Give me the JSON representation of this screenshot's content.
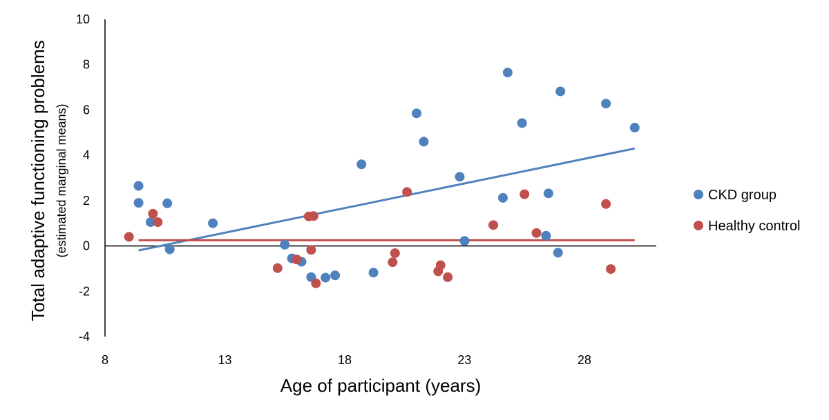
{
  "chart_data": {
    "type": "scatter",
    "xlabel": "Age of participant (years)",
    "ylabel": "Total adaptive functioning problems",
    "ylabel_sub": "(estimated marginal means)",
    "xlim": [
      8,
      31
    ],
    "ylim": [
      -4,
      10
    ],
    "x_ticks": [
      "8",
      "13",
      "18",
      "23",
      "28"
    ],
    "y_ticks": [
      "10",
      "8",
      "6",
      "4",
      "2",
      "0",
      "-2",
      "-4"
    ],
    "grid": false,
    "legend_position": "right",
    "series": [
      {
        "name": "CKD group",
        "color": "#4f81bd",
        "points": [
          [
            9.4,
            2.65
          ],
          [
            9.4,
            1.9
          ],
          [
            9.9,
            1.05
          ],
          [
            10.6,
            1.88
          ],
          [
            10.7,
            -0.15
          ],
          [
            12.5,
            1.0
          ],
          [
            15.5,
            0.05
          ],
          [
            15.8,
            -0.55
          ],
          [
            16.2,
            -0.7
          ],
          [
            16.6,
            -1.38
          ],
          [
            17.2,
            -1.4
          ],
          [
            17.6,
            -1.3
          ],
          [
            18.7,
            3.6
          ],
          [
            19.2,
            -1.18
          ],
          [
            21.0,
            5.85
          ],
          [
            21.3,
            4.6
          ],
          [
            22.8,
            3.05
          ],
          [
            23.0,
            0.22
          ],
          [
            24.6,
            2.12
          ],
          [
            24.8,
            7.65
          ],
          [
            25.4,
            5.42
          ],
          [
            26.4,
            0.45
          ],
          [
            26.5,
            2.32
          ],
          [
            26.9,
            -0.3
          ],
          [
            27.0,
            6.82
          ],
          [
            28.9,
            6.28
          ],
          [
            30.1,
            5.22
          ]
        ],
        "trend": {
          "x": [
            9.4,
            30.1
          ],
          "y": [
            -0.2,
            4.3
          ]
        }
      },
      {
        "name": "Healthy control",
        "color": "#c0504d",
        "points": [
          [
            9.0,
            0.4
          ],
          [
            10.0,
            1.42
          ],
          [
            10.2,
            1.05
          ],
          [
            15.2,
            -0.98
          ],
          [
            16.0,
            -0.6
          ],
          [
            16.5,
            1.3
          ],
          [
            16.6,
            -0.18
          ],
          [
            16.7,
            1.32
          ],
          [
            16.8,
            -1.65
          ],
          [
            20.0,
            -0.72
          ],
          [
            20.1,
            -0.32
          ],
          [
            20.6,
            2.38
          ],
          [
            21.9,
            -1.12
          ],
          [
            22.0,
            -0.85
          ],
          [
            22.3,
            -1.38
          ],
          [
            24.2,
            0.92
          ],
          [
            25.5,
            2.28
          ],
          [
            26.0,
            0.57
          ],
          [
            28.9,
            1.85
          ],
          [
            29.1,
            -1.02
          ]
        ],
        "trend": {
          "x": [
            9.4,
            30.1
          ],
          "y": [
            0.25,
            0.25
          ]
        }
      }
    ]
  }
}
